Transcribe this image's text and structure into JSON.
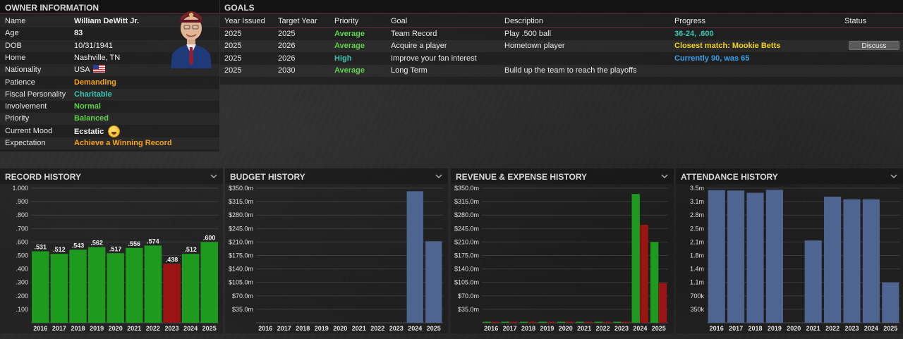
{
  "owner": {
    "title": "OWNER INFORMATION",
    "rows": [
      {
        "label": "Name",
        "value": "William DeWitt Jr."
      },
      {
        "label": "Age",
        "value": "83"
      },
      {
        "label": "DOB",
        "value": "10/31/1941"
      },
      {
        "label": "Home",
        "value": "Nashville, TN"
      },
      {
        "label": "Nationality",
        "value": "USA"
      },
      {
        "label": "Patience",
        "value": "Demanding"
      },
      {
        "label": "Fiscal Personality",
        "value": "Charitable"
      },
      {
        "label": "Involvement",
        "value": "Normal"
      },
      {
        "label": "Priority",
        "value": "Balanced"
      },
      {
        "label": "Current Mood",
        "value": "Ecstatic"
      },
      {
        "label": "Expectation",
        "value": "Achieve a Winning Record"
      }
    ]
  },
  "goals": {
    "title": "GOALS",
    "headers": [
      "Year Issued",
      "Target Year",
      "Priority",
      "Goal",
      "Description",
      "Progress",
      "Status"
    ],
    "rows": [
      {
        "issued": "2025",
        "target": "2025",
        "priority": "Average",
        "goal": "Team Record",
        "description": "Play .500 ball",
        "progress": "36-24, .600",
        "status": ""
      },
      {
        "issued": "2025",
        "target": "2026",
        "priority": "Average",
        "goal": "Acquire a player",
        "description": "Hometown player",
        "progress": "Closest match: Mookie Betts",
        "status": "Discuss"
      },
      {
        "issued": "2025",
        "target": "2026",
        "priority": "High",
        "goal": "Improve your fan interest",
        "description": "",
        "progress": "Currently 90, was 65",
        "status": ""
      },
      {
        "issued": "2025",
        "target": "2030",
        "priority": "Average",
        "goal": "Long Term",
        "description": "Build up the team to reach the playoffs",
        "progress": "",
        "status": ""
      }
    ],
    "colors": {
      "average": "#5ed14b",
      "high": "#3cc4b4",
      "progress_good": "#3cc4b4",
      "progress_match": "#f2d21a",
      "progress_info": "#3aa0e8"
    }
  },
  "charts": {
    "record": {
      "title": "RECORD HISTORY"
    },
    "budget": {
      "title": "BUDGET HISTORY"
    },
    "revenue": {
      "title": "REVENUE & EXPENSE HISTORY"
    },
    "attendance": {
      "title": "ATTENDANCE HISTORY"
    }
  },
  "chart_data": [
    {
      "id": "record",
      "type": "bar",
      "title": "RECORD HISTORY",
      "categories": [
        "2016",
        "2017",
        "2018",
        "2019",
        "2020",
        "2021",
        "2022",
        "2023",
        "2024",
        "2025"
      ],
      "values": [
        0.531,
        0.512,
        0.543,
        0.562,
        0.517,
        0.556,
        0.574,
        0.438,
        0.512,
        0.6
      ],
      "data_labels": [
        ".531",
        ".512",
        ".543",
        ".562",
        ".517",
        ".556",
        ".574",
        ".438",
        ".512",
        ".600"
      ],
      "bar_colors": [
        "green",
        "green",
        "green",
        "green",
        "green",
        "green",
        "green",
        "red",
        "green",
        "green"
      ],
      "ylim": [
        0,
        1.0
      ],
      "yticks": [
        ".100",
        ".200",
        ".300",
        ".400",
        ".500",
        ".600",
        ".700",
        ".800",
        ".900",
        "1.000"
      ],
      "ytick_values": [
        0.1,
        0.2,
        0.3,
        0.4,
        0.5,
        0.6,
        0.7,
        0.8,
        0.9,
        1.0
      ],
      "colors": {
        "green": "#1e9a1e",
        "red": "#9a1414"
      }
    },
    {
      "id": "budget",
      "type": "bar",
      "title": "BUDGET HISTORY",
      "categories": [
        "2016",
        "2017",
        "2018",
        "2019",
        "2020",
        "2021",
        "2022",
        "2023",
        "2024",
        "2025"
      ],
      "values": [
        0,
        0,
        0,
        0,
        0,
        0,
        0,
        0,
        342,
        212
      ],
      "ylim": [
        0,
        350
      ],
      "yticks": [
        "$35.0m",
        "$70.0m",
        "$105.0m",
        "$140.0m",
        "$175.0m",
        "$210.0m",
        "$245.0m",
        "$280.0m",
        "$315.0m",
        "$350.0m"
      ],
      "ytick_values": [
        35,
        70,
        105,
        140,
        175,
        210,
        245,
        280,
        315,
        350
      ],
      "colors": {
        "bar": "#4f6591"
      }
    },
    {
      "id": "revenue",
      "type": "bar",
      "title": "REVENUE & EXPENSE HISTORY",
      "categories": [
        "2016",
        "2017",
        "2018",
        "2019",
        "2020",
        "2021",
        "2022",
        "2023",
        "2024",
        "2025"
      ],
      "series": [
        {
          "values": [
            0,
            0,
            0,
            0,
            0,
            0,
            0,
            0,
            335,
            210
          ],
          "color": "#1e9a1e"
        },
        {
          "values": [
            0,
            0,
            0,
            0,
            0,
            0,
            0,
            0,
            255,
            103
          ],
          "color": "#9a1414"
        }
      ],
      "ylim": [
        0,
        350
      ],
      "yticks": [
        "$35.0m",
        "$70.0m",
        "$105.0m",
        "$140.0m",
        "$175.0m",
        "$210.0m",
        "$245.0m",
        "$280.0m",
        "$315.0m",
        "$350.0m"
      ],
      "ytick_values": [
        35,
        70,
        105,
        140,
        175,
        210,
        245,
        280,
        315,
        350
      ]
    },
    {
      "id": "attendance",
      "type": "bar",
      "title": "ATTENDANCE HISTORY",
      "categories": [
        "2016",
        "2017",
        "2018",
        "2019",
        "2020",
        "2021",
        "2022",
        "2023",
        "2024",
        "2025"
      ],
      "values": [
        3450000,
        3440000,
        3380000,
        3460000,
        0,
        2140000,
        3280000,
        3210000,
        3210000,
        1050000
      ],
      "ylim": [
        0,
        3500000
      ],
      "yticks": [
        "350k",
        "700k",
        "1.1m",
        "1.4m",
        "1.8m",
        "2.1m",
        "2.5m",
        "2.8m",
        "3.1m",
        "3.5m"
      ],
      "ytick_values": [
        350000,
        700000,
        1050000,
        1400000,
        1750000,
        2100000,
        2450000,
        2800000,
        3150000,
        3500000
      ],
      "colors": {
        "bar": "#4f6591"
      }
    }
  ],
  "icons": {
    "collapse": "chevron-down-icon",
    "flag": "us-flag-icon",
    "mood": "laughing-face-icon",
    "avatar": "owner-portrait"
  }
}
